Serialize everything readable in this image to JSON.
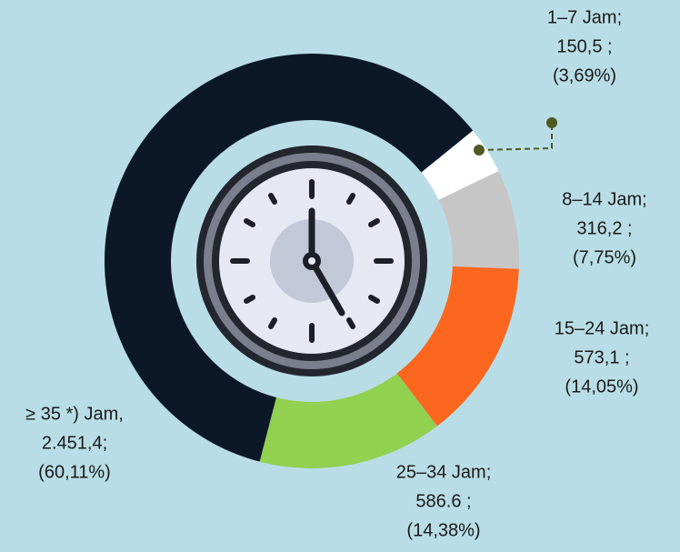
{
  "chart_data": {
    "type": "pie",
    "categories": [
      "1–7 Jam;",
      "8–14 Jam;",
      "15–24 Jam;",
      "25–34 Jam;",
      "≥ 35 *) Jam,"
    ],
    "values": [
      150.5,
      316.2,
      573.1,
      586.6,
      2451.4
    ],
    "value_labels": [
      "150,5 ;",
      "316,2 ;",
      "573,1 ;",
      "586.6 ;",
      "2.451,4;"
    ],
    "percentage_labels": [
      "(3,69%)",
      "(7,75%)",
      "(14,05%)",
      "(14,38%)",
      "(60,11%)"
    ],
    "colors": [
      "#ffffff",
      "#c6c6c6",
      "#fb671f",
      "#92d050",
      "#0c1828"
    ]
  }
}
